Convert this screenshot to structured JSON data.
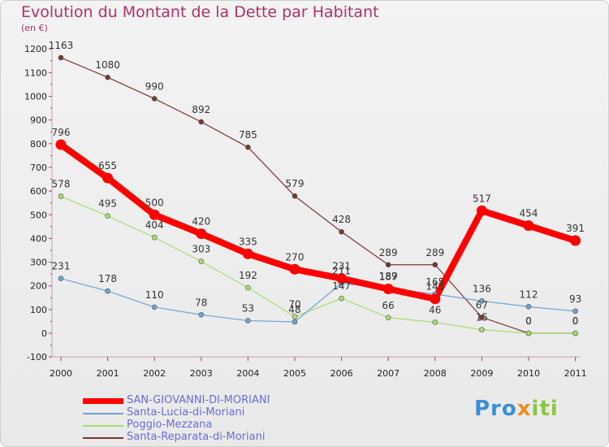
{
  "chart_data": {
    "type": "line",
    "title": "Evolution du Montant de la Dette par Habitant",
    "ylabel": "(en €)",
    "xlabel": "",
    "x": [
      "2000",
      "2001",
      "2002",
      "2003",
      "2004",
      "2005",
      "2006",
      "2007",
      "2008",
      "2009",
      "2010",
      "2011"
    ],
    "yticks": [
      "-100",
      "0",
      "100",
      "200",
      "300",
      "400",
      "500",
      "600",
      "700",
      "800",
      "900",
      "1000",
      "1100",
      "1200"
    ],
    "ylim": [
      -100,
      1200
    ],
    "series": [
      {
        "name": "SAN-GIOVANNI-DI-MORIANI",
        "color": "#ff0000",
        "values": [
          796,
          655,
          500,
          420,
          335,
          270,
          231,
          187,
          145,
          517,
          454,
          391
        ],
        "labels": [
          "796",
          "655",
          "500",
          "420",
          "335",
          "270",
          "231",
          "187",
          "145",
          "517",
          "454",
          "391"
        ]
      },
      {
        "name": "Santa-Lucia-di-Moriani",
        "color": "#6fa3d6",
        "values": [
          231,
          178,
          110,
          78,
          53,
          48,
          211,
          189,
          165,
          136,
          112,
          93
        ],
        "labels": [
          "231",
          "178",
          "110",
          "78",
          "53",
          "48",
          "211",
          "189",
          "165",
          "136",
          "112",
          "93"
        ]
      },
      {
        "name": "Poggio-Mezzana",
        "color": "#a6dd6f",
        "values": [
          578,
          495,
          404,
          303,
          192,
          70,
          147,
          66,
          46,
          15,
          0,
          0
        ],
        "labels": [
          "578",
          "495",
          "404",
          "303",
          "192",
          "70",
          "147",
          "66",
          "46",
          "15",
          "0",
          "0"
        ]
      },
      {
        "name": "Santa-Reparata-di-Moriani",
        "color": "#7a3535",
        "values": [
          1163,
          1080,
          990,
          892,
          785,
          579,
          428,
          289,
          289,
          67,
          0,
          0
        ],
        "labels": [
          "1163",
          "1080",
          "990",
          "892",
          "785",
          "579",
          "428",
          "289",
          "289",
          "67",
          "0",
          "0"
        ]
      }
    ],
    "legend_position": "bottom-left"
  },
  "logo": {
    "part1": "Pro",
    "part2": "x",
    "part3": "iti"
  }
}
